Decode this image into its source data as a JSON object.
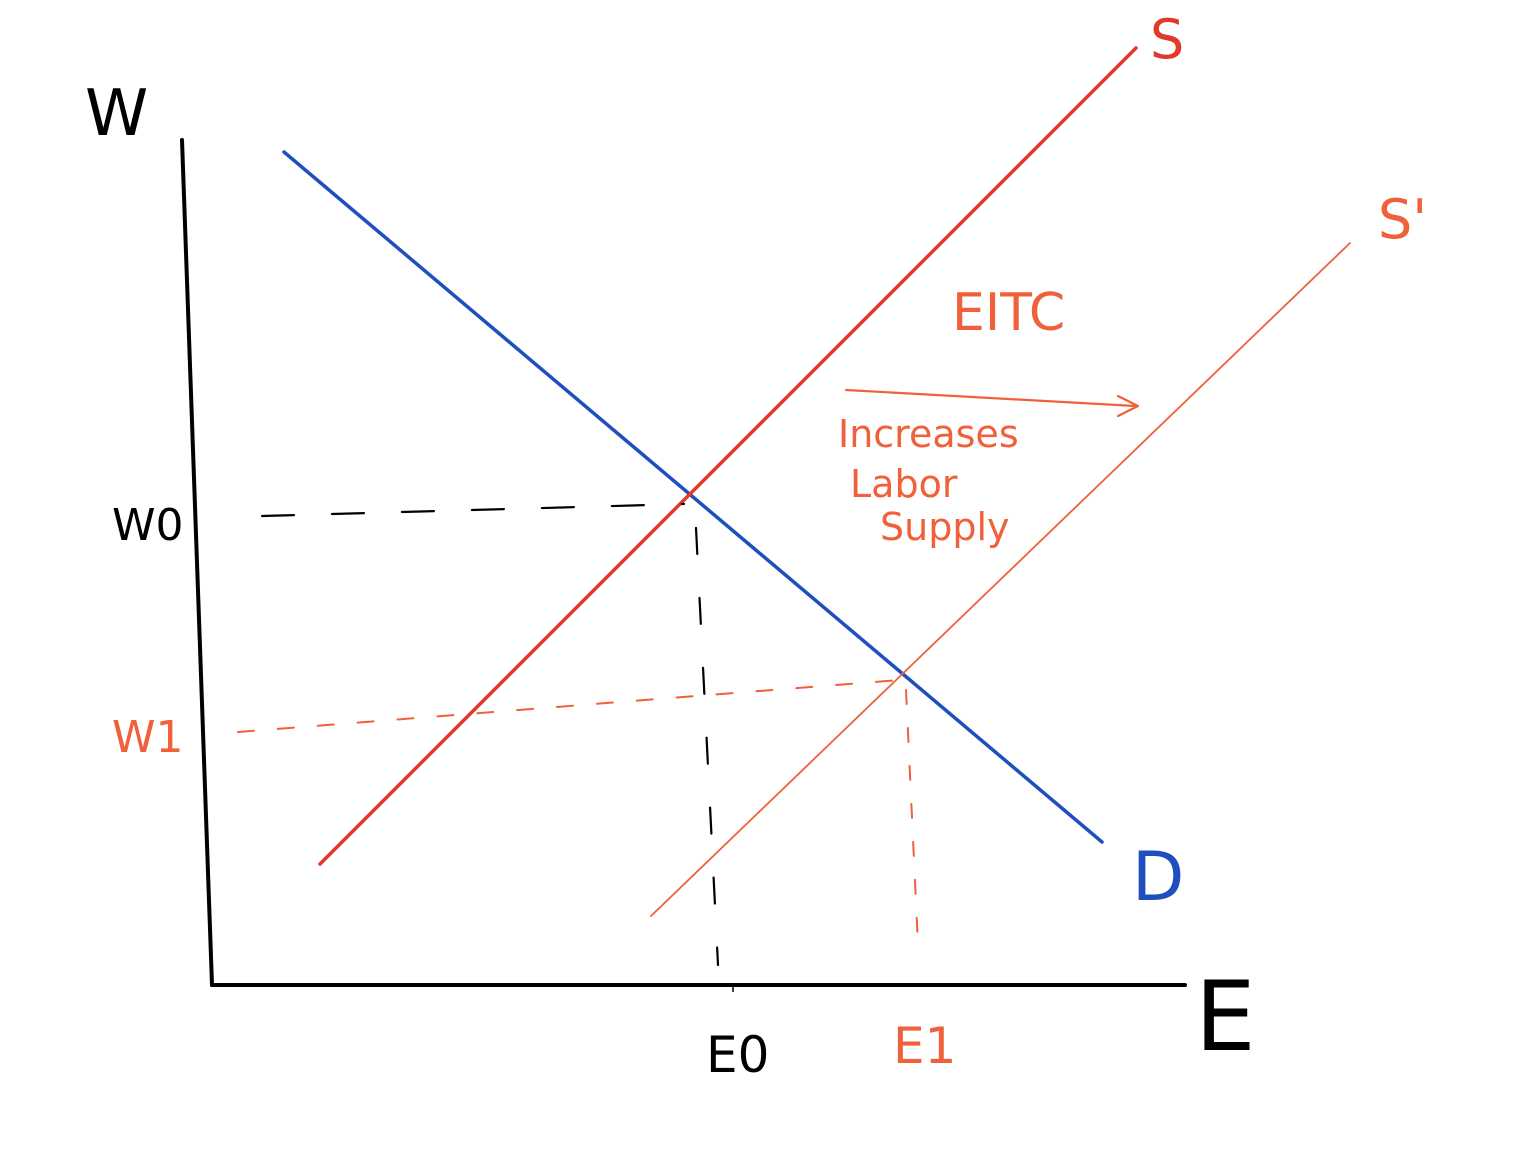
{
  "colors": {
    "axis": "#000000",
    "demand": "#1f4fbf",
    "supply": "#e03a2a",
    "supply_shifted": "#f0603a",
    "annotation": "#f0603a",
    "guide_original": "#000000",
    "guide_new": "#f0603a"
  },
  "axes": {
    "y_label": "W",
    "x_label": "E"
  },
  "curves": {
    "supply_label": "S",
    "supply_shifted_label": "S'",
    "demand_label": "D"
  },
  "ticks": {
    "w0_label": "W0",
    "w1_label": "W1",
    "e0_label": "E0",
    "e1_label": "E1"
  },
  "annotation": {
    "policy": "EITC",
    "line1": "Increases",
    "line2": "Labor",
    "line3": "Supply"
  }
}
